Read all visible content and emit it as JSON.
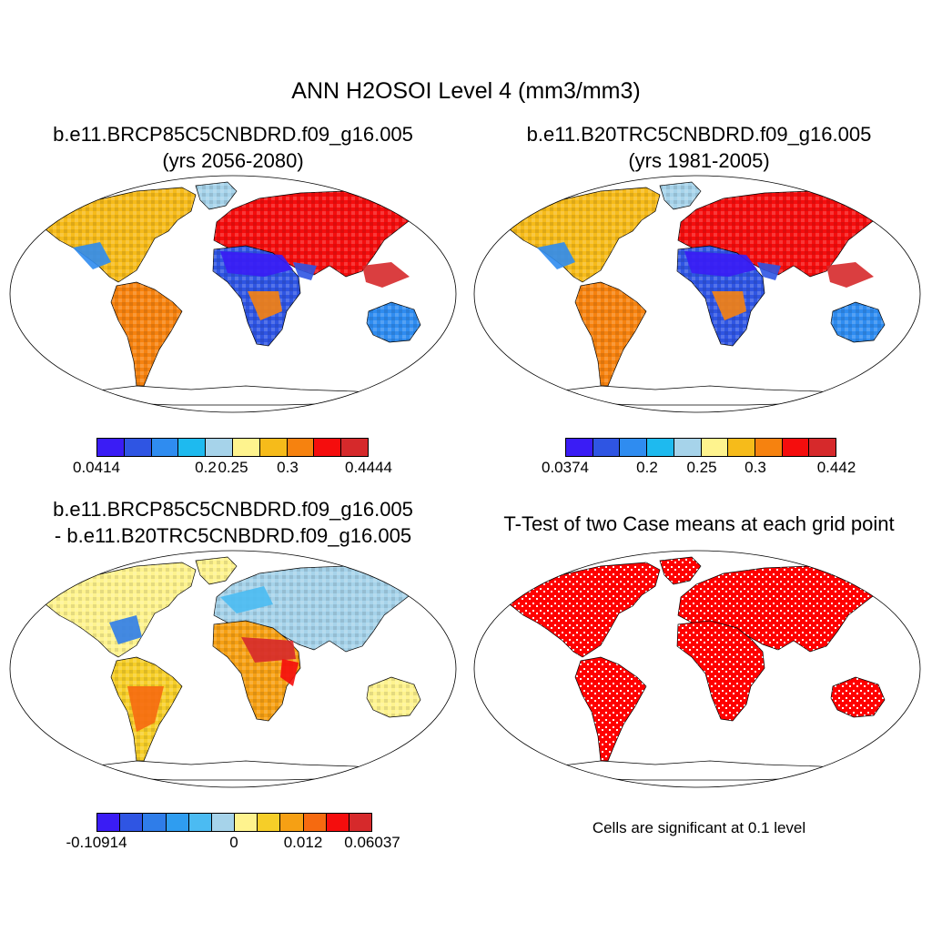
{
  "title": "ANN H2OSOI Level 4 (mm3/mm3)",
  "panels": [
    {
      "id": "p1",
      "title_line1": "b.e11.BRCP85C5CNBDRD.f09_g16.005",
      "title_line2": "(yrs 2056-2080)",
      "style": "mean"
    },
    {
      "id": "p2",
      "title_line1": "b.e11.B20TRC5CNBDRD.f09_g16.005",
      "title_line2": "(yrs 1981-2005)",
      "style": "mean"
    },
    {
      "id": "p3",
      "title_line1": "b.e11.BRCP85C5CNBDRD.f09_g16.005",
      "title_line2": "- b.e11.B20TRC5CNBDRD.f09_g16.005",
      "style": "diff"
    },
    {
      "id": "p4",
      "title_line1": "T-Test of two Case means at each grid point",
      "title_line2": "",
      "style": "ttest"
    }
  ],
  "colorbars": {
    "case1": {
      "colors": [
        "#3a1cf5",
        "#2f55e3",
        "#2f8cf0",
        "#1ebaef",
        "#a6d3ea",
        "#fef38e",
        "#f6bb1a",
        "#f6820f",
        "#f50d0d",
        "#d6292b"
      ],
      "labels": [
        "0.0414",
        "0.2",
        "0.25",
        "0.3",
        "0.4444"
      ]
    },
    "case2": {
      "colors": [
        "#3a1cf5",
        "#2f55e3",
        "#2f8cf0",
        "#1ebaef",
        "#a6d3ea",
        "#fef38e",
        "#f6bb1a",
        "#f6820f",
        "#f50d0d",
        "#d6292b"
      ],
      "labels": [
        "0.0374",
        "0.2",
        "0.25",
        "0.3",
        "0.442"
      ]
    },
    "diff": {
      "colors": [
        "#3a1cf5",
        "#2f55e3",
        "#2f7de9",
        "#2f9df0",
        "#4bbbf2",
        "#a6d3ea",
        "#fef38e",
        "#f6ce28",
        "#f6a014",
        "#f66a10",
        "#f50d0d",
        "#d6292b"
      ],
      "labels": [
        "-0.10914",
        "0",
        "0.012",
        "0.06037"
      ]
    }
  },
  "significance_note": "Cells are significant at 0.1 level",
  "significance_color": "#ff0000"
}
